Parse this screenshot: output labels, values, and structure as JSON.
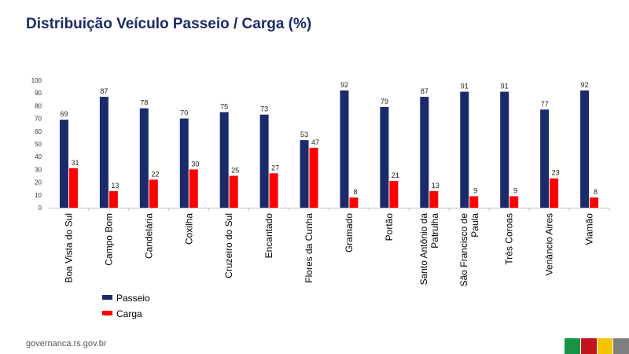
{
  "title": "Distribuição Veículo Passeio / Carga (%)",
  "footer": {
    "url": "governanca.rs.gov.br"
  },
  "colors": {
    "passeio": "#1b2a6b",
    "carga": "#ff0000",
    "title": "#1b2a6b",
    "flag": [
      "#159447",
      "#c0151c",
      "#f5c400",
      "#7f7f7f"
    ]
  },
  "chart_data": {
    "type": "bar",
    "title": "Distribuição Veículo Passeio / Carga (%)",
    "xlabel": "",
    "ylabel": "",
    "ylim": [
      0,
      100
    ],
    "yticks": [
      0,
      10,
      20,
      30,
      40,
      50,
      60,
      70,
      80,
      90,
      100
    ],
    "grid": false,
    "legend_position": "bottom-left",
    "categories": [
      "Boa Vista do Sul",
      "Campo Bom",
      "Candelária",
      "Coxilha",
      "Cruzeiro do Sul",
      "Encantado",
      "Flores da Cunha",
      "Gramado",
      "Portão",
      "Santo Antônio da Patrulha",
      "São Francisco de Paula",
      "Três Coroas",
      "Venâncio Aires",
      "Viamão"
    ],
    "category_lines": [
      [
        "Boa Vista do Sul"
      ],
      [
        "Campo Bom"
      ],
      [
        "Candelária"
      ],
      [
        "Coxilha"
      ],
      [
        "Cruzeiro do Sul"
      ],
      [
        "Encantado"
      ],
      [
        "Flores da Cunha"
      ],
      [
        "Gramado"
      ],
      [
        "Portão"
      ],
      [
        "Santo Antônio da",
        "Patrulha"
      ],
      [
        "São Francisco de",
        "Paula"
      ],
      [
        "Três Coroas"
      ],
      [
        "Venâncio Aires"
      ],
      [
        "Viamão"
      ]
    ],
    "series": [
      {
        "name": "Passeio",
        "values": [
          69,
          87,
          78,
          70,
          75,
          73,
          53,
          92,
          79,
          87,
          91,
          91,
          77,
          92
        ]
      },
      {
        "name": "Carga",
        "values": [
          31,
          13,
          22,
          30,
          25,
          27,
          47,
          8,
          21,
          13,
          9,
          9,
          23,
          8
        ]
      }
    ]
  }
}
